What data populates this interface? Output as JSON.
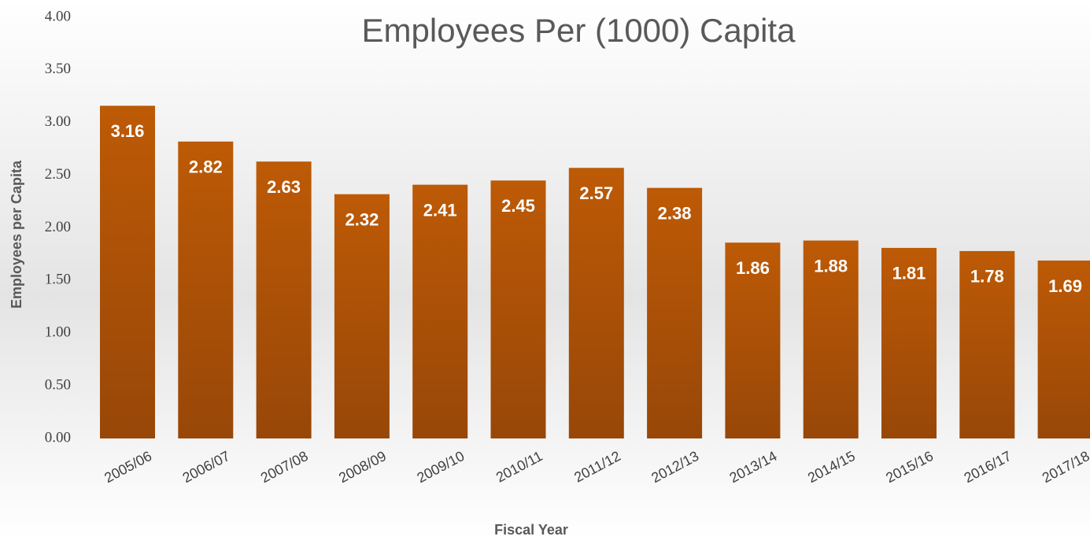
{
  "chart_data": {
    "type": "bar",
    "title": "Employees Per (1000) Capita",
    "x_label": "Fiscal Year",
    "y_label": "Employees per Capita",
    "categories": [
      "2005/06",
      "2006/07",
      "2007/08",
      "2008/09",
      "2009/10",
      "2010/11",
      "2011/12",
      "2012/13",
      "2013/14",
      "2014/15",
      "2015/16",
      "2016/17",
      "2017/18"
    ],
    "values": [
      3.16,
      2.82,
      2.63,
      2.32,
      2.41,
      2.45,
      2.57,
      2.38,
      1.86,
      1.88,
      1.81,
      1.78,
      1.69
    ],
    "color": "#b35600",
    "ylim": [
      0,
      4
    ],
    "yticks": [
      {
        "value": 0,
        "label": "0.00"
      },
      {
        "value": 0.5,
        "label": "0.50"
      },
      {
        "value": 1,
        "label": "1.00"
      },
      {
        "value": 1.5,
        "label": "1.50"
      },
      {
        "value": 2,
        "label": "2.00"
      },
      {
        "value": 2.5,
        "label": "2.50"
      },
      {
        "value": 3,
        "label": "3.00"
      },
      {
        "value": 3.5,
        "label": "3.50"
      },
      {
        "value": 4,
        "label": "4.00"
      }
    ],
    "grid": false
  }
}
